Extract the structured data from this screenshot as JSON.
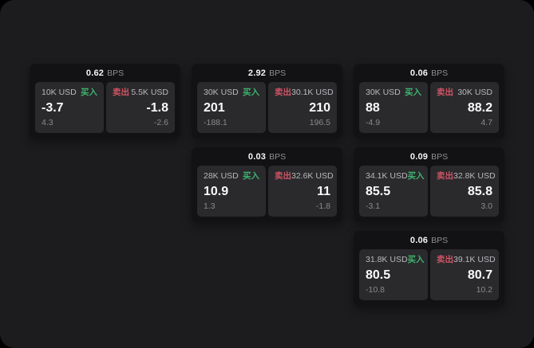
{
  "labels": {
    "bps_unit": "BPS",
    "buy": "买入",
    "sell": "卖出"
  },
  "colors": {
    "page_bg": "#1c1c1e",
    "card_bg": "#121214",
    "panel_bg": "#2a2a2d",
    "buy_green": "#3eb36e",
    "sell_red": "#cf5364"
  },
  "cards": [
    {
      "bps": "0.62",
      "buy": {
        "amount": "10K USD",
        "price": "-3.7",
        "change": "4.3"
      },
      "sell": {
        "amount": "5.5K USD",
        "price": "-1.8",
        "change": "-2.6"
      }
    },
    {
      "bps": "2.92",
      "buy": {
        "amount": "30K USD",
        "price": "201",
        "change": "-188.1"
      },
      "sell": {
        "amount": "30.1K USD",
        "price": "210",
        "change": "196.5"
      }
    },
    {
      "bps": "0.06",
      "buy": {
        "amount": "30K USD",
        "price": "88",
        "change": "-4.9"
      },
      "sell": {
        "amount": "30K USD",
        "price": "88.2",
        "change": "4.7"
      }
    },
    {
      "bps": "0.03",
      "buy": {
        "amount": "28K USD",
        "price": "10.9",
        "change": "1.3"
      },
      "sell": {
        "amount": "32.6K USD",
        "price": "11",
        "change": "-1.8"
      }
    },
    {
      "bps": "0.09",
      "buy": {
        "amount": "34.1K USD",
        "price": "85.5",
        "change": "-3.1"
      },
      "sell": {
        "amount": "32.8K USD",
        "price": "85.8",
        "change": "3.0"
      }
    },
    {
      "bps": "0.06",
      "buy": {
        "amount": "31.8K USD",
        "price": "80.5",
        "change": "-10.8"
      },
      "sell": {
        "amount": "39.1K USD",
        "price": "80.7",
        "change": "10.2"
      }
    }
  ]
}
